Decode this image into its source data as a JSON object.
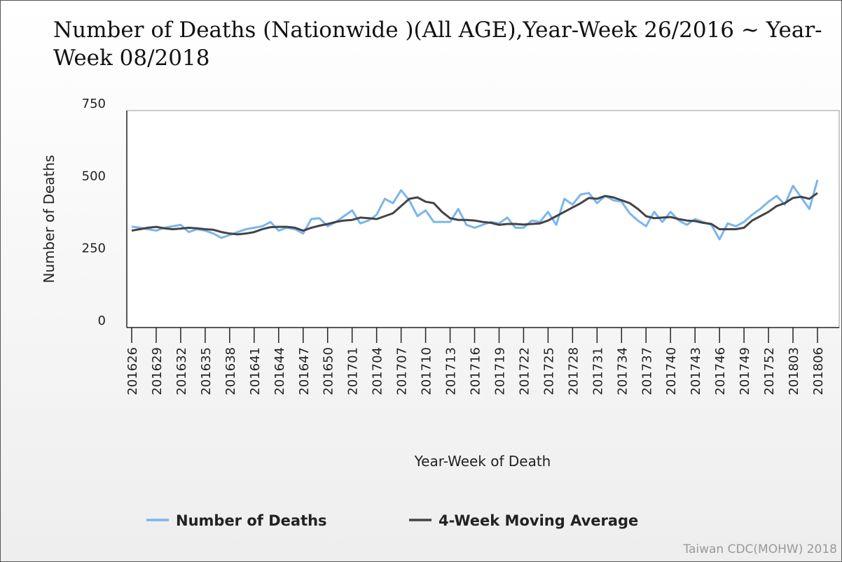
{
  "chart_data": {
    "type": "line",
    "title": "Number of Deaths (Nationwide )(All AGE),Year-Week 26/2016 ~ Year-Week 08/2018",
    "x_label": "Year-Week of Death",
    "y_label": "Number of Deaths",
    "credit": "Taiwan CDC(MOHW) 2018",
    "categories": [
      "201626",
      null,
      null,
      "201629",
      null,
      null,
      "201632",
      null,
      null,
      "201635",
      null,
      null,
      "201638",
      null,
      null,
      "201641",
      null,
      null,
      "201644",
      null,
      null,
      "201647",
      null,
      null,
      "201650",
      null,
      null,
      "201701",
      null,
      null,
      "201704",
      null,
      null,
      "201707",
      null,
      null,
      "201710",
      null,
      null,
      "201713",
      null,
      null,
      "201716",
      null,
      null,
      "201719",
      null,
      null,
      "201722",
      null,
      null,
      "201725",
      null,
      null,
      "201728",
      null,
      null,
      "201731",
      null,
      null,
      "201734",
      null,
      null,
      "201737",
      null,
      null,
      "201740",
      null,
      null,
      "201743",
      null,
      null,
      "201746",
      null,
      null,
      "201749",
      null,
      null,
      "201752",
      null,
      null,
      "201803",
      null,
      null,
      "201806"
    ],
    "series": [
      {
        "name": "Number of Deaths",
        "color": "#7cb5ec",
        "values": [
          349,
          345,
          340,
          335,
          345,
          350,
          355,
          330,
          340,
          335,
          325,
          310,
          320,
          330,
          340,
          345,
          350,
          365,
          335,
          345,
          340,
          325,
          375,
          378,
          350,
          365,
          385,
          405,
          360,
          370,
          390,
          445,
          430,
          475,
          440,
          385,
          405,
          365,
          365,
          365,
          410,
          355,
          345,
          355,
          365,
          360,
          380,
          345,
          345,
          370,
          365,
          400,
          355,
          445,
          425,
          460,
          465,
          430,
          455,
          440,
          435,
          395,
          370,
          350,
          400,
          365,
          400,
          370,
          355,
          375,
          365,
          355,
          305,
          360,
          350,
          365,
          390,
          410,
          435,
          455,
          425,
          490,
          450,
          410,
          510
        ]
      },
      {
        "name": "4-Week Moving Average",
        "color": "#434348",
        "values": [
          335,
          340,
          345,
          348,
          343,
          340,
          342,
          345,
          343,
          340,
          338,
          330,
          325,
          322,
          325,
          330,
          340,
          347,
          348,
          348,
          345,
          335,
          345,
          352,
          358,
          365,
          370,
          372,
          380,
          378,
          375,
          385,
          395,
          420,
          445,
          450,
          435,
          430,
          400,
          378,
          372,
          372,
          370,
          365,
          362,
          355,
          358,
          358,
          356,
          358,
          360,
          370,
          385,
          400,
          415,
          430,
          448,
          445,
          455,
          450,
          440,
          430,
          410,
          385,
          378,
          380,
          382,
          375,
          370,
          368,
          362,
          358,
          340,
          340,
          340,
          345,
          370,
          385,
          400,
          420,
          430,
          448,
          452,
          445,
          465
        ]
      }
    ],
    "ylim": [
      0,
      750
    ],
    "yticks": [
      0,
      250,
      500,
      750
    ],
    "grid": false
  }
}
